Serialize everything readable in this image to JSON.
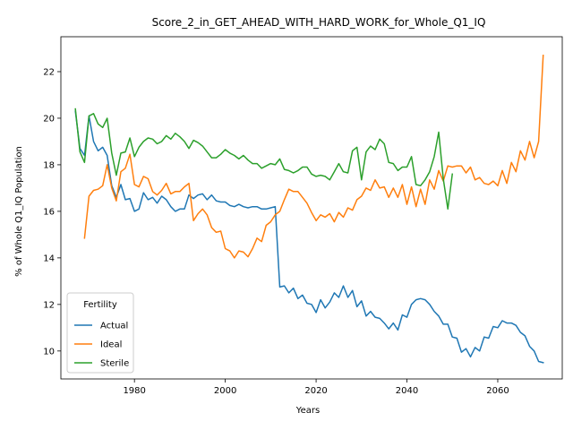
{
  "chart_data": {
    "type": "line",
    "title": "Score_2_in_GET_AHEAD_WITH_HARD_WORK_for_Whole_Q1_IQ",
    "xlabel": "Years",
    "ylabel": "% of Whole Q1_IQ Population",
    "xlim": [
      1963.8,
      2074.2
    ],
    "ylim": [
      8.8,
      23.5
    ],
    "xticks": [
      1980,
      2000,
      2020,
      2040,
      2060
    ],
    "yticks": [
      10,
      12,
      14,
      16,
      18,
      20,
      22
    ],
    "grid": false,
    "legend": {
      "title": "Fertility",
      "placement": "lower-left"
    },
    "x": [
      1967,
      1968,
      1969,
      1970,
      1971,
      1972,
      1973,
      1974,
      1975,
      1976,
      1977,
      1978,
      1979,
      1980,
      1981,
      1982,
      1983,
      1984,
      1985,
      1986,
      1987,
      1988,
      1989,
      1990,
      1991,
      1992,
      1993,
      1994,
      1995,
      1996,
      1997,
      1998,
      1999,
      2000,
      2001,
      2002,
      2003,
      2004,
      2005,
      2006,
      2007,
      2008,
      2009,
      2010,
      2011,
      2012,
      2013,
      2014,
      2015,
      2016,
      2017,
      2018,
      2019,
      2020,
      2021,
      2022,
      2023,
      2024,
      2025,
      2026,
      2027,
      2028,
      2029,
      2030,
      2031,
      2032,
      2033,
      2034,
      2035,
      2036,
      2037,
      2038,
      2039,
      2040,
      2041,
      2042,
      2043,
      2044,
      2045,
      2046,
      2047,
      2048,
      2049,
      2050,
      2051,
      2052,
      2053,
      2054,
      2055,
      2056,
      2057,
      2058,
      2059,
      2060,
      2061,
      2062,
      2063,
      2064,
      2065,
      2066,
      2067,
      2068,
      2069,
      2070
    ],
    "series": [
      {
        "name": "Actual",
        "color": "#1f77b4",
        "values": [
          20.3,
          18.7,
          18.4,
          20.1,
          19.0,
          18.6,
          18.75,
          18.4,
          17.1,
          16.6,
          17.15,
          16.5,
          16.55,
          16.0,
          16.1,
          16.8,
          16.5,
          16.6,
          16.35,
          16.65,
          16.5,
          16.2,
          16.0,
          16.1,
          16.1,
          16.7,
          16.55,
          16.7,
          16.75,
          16.5,
          16.7,
          16.45,
          16.4,
          16.4,
          16.25,
          16.2,
          16.3,
          16.2,
          16.15,
          16.2,
          16.2,
          16.1,
          16.1,
          16.15,
          16.2,
          12.75,
          12.8,
          12.5,
          12.7,
          12.25,
          12.4,
          12.05,
          12.0,
          11.65,
          12.2,
          11.85,
          12.1,
          12.5,
          12.3,
          12.8,
          12.3,
          12.6,
          11.9,
          12.15,
          11.5,
          11.7,
          11.45,
          11.4,
          11.2,
          10.95,
          11.2,
          10.9,
          11.55,
          11.45,
          12.0,
          12.2,
          12.25,
          12.2,
          12.0,
          11.7,
          11.5,
          11.15,
          11.15,
          10.6,
          10.55,
          9.95,
          10.1,
          9.75,
          10.15,
          10.0,
          10.6,
          10.55,
          11.05,
          11.0,
          11.3,
          11.2,
          11.2,
          11.1,
          10.8,
          10.65,
          10.2,
          10.0,
          9.55,
          9.5
        ]
      },
      {
        "name": "Ideal",
        "color": "#ff7f0e",
        "values": [
          null,
          null,
          14.85,
          16.65,
          16.9,
          16.95,
          17.1,
          18.0,
          17.0,
          16.45,
          17.7,
          17.85,
          18.45,
          17.15,
          17.05,
          17.5,
          17.4,
          16.85,
          16.7,
          16.9,
          17.2,
          16.75,
          16.85,
          16.85,
          17.05,
          17.2,
          15.6,
          15.9,
          16.1,
          15.85,
          15.3,
          15.1,
          15.15,
          14.4,
          14.3,
          14.0,
          14.3,
          14.25,
          14.05,
          14.4,
          14.85,
          14.7,
          15.4,
          15.55,
          15.85,
          16.0,
          16.5,
          16.95,
          16.85,
          16.85,
          16.6,
          16.35,
          15.95,
          15.6,
          15.85,
          15.75,
          15.9,
          15.55,
          15.95,
          15.75,
          16.15,
          16.05,
          16.5,
          16.65,
          17.0,
          16.9,
          17.35,
          17.0,
          17.05,
          16.6,
          17.0,
          16.6,
          17.15,
          16.3,
          17.05,
          16.2,
          16.95,
          16.3,
          17.35,
          16.95,
          17.75,
          17.3,
          17.95,
          17.9,
          17.95,
          17.95,
          17.65,
          17.9,
          17.35,
          17.45,
          17.2,
          17.15,
          17.3,
          17.1,
          17.75,
          17.2,
          18.1,
          17.7,
          18.6,
          18.2,
          19.0,
          18.3,
          19.0,
          22.7
        ]
      },
      {
        "name": "Sterile",
        "color": "#2ca02c",
        "values": [
          20.4,
          18.55,
          18.1,
          20.1,
          20.2,
          19.75,
          19.6,
          20.0,
          18.5,
          17.55,
          18.5,
          18.55,
          19.15,
          18.35,
          18.75,
          19.0,
          19.15,
          19.1,
          18.9,
          19.0,
          19.25,
          19.1,
          19.35,
          19.2,
          19.0,
          18.7,
          19.05,
          18.95,
          18.8,
          18.55,
          18.3,
          18.3,
          18.45,
          18.65,
          18.5,
          18.4,
          18.25,
          18.4,
          18.2,
          18.05,
          18.05,
          17.85,
          17.95,
          18.05,
          18.0,
          18.25,
          17.8,
          17.75,
          17.65,
          17.75,
          17.9,
          17.9,
          17.6,
          17.5,
          17.55,
          17.5,
          17.35,
          17.7,
          18.05,
          17.7,
          17.65,
          18.6,
          18.75,
          17.35,
          18.55,
          18.8,
          18.65,
          19.1,
          18.9,
          18.1,
          18.05,
          17.75,
          17.9,
          17.9,
          18.35,
          17.15,
          17.1,
          17.35,
          17.7,
          18.35,
          19.4,
          17.4,
          16.1,
          17.6,
          null,
          null,
          null,
          null,
          null,
          null,
          null,
          null,
          null,
          null,
          null,
          null,
          null,
          null,
          null,
          null,
          null,
          null,
          null,
          null
        ]
      }
    ]
  }
}
